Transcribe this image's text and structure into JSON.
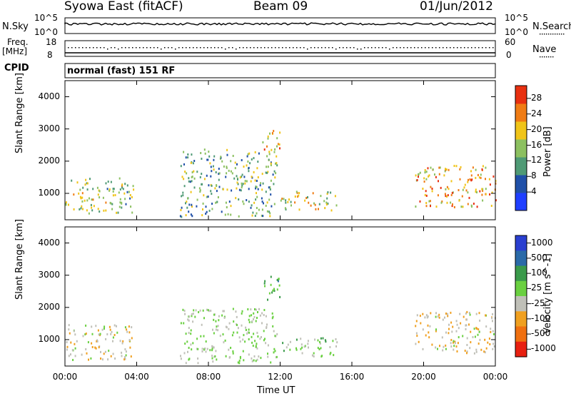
{
  "header": {
    "station": "Syowa East (fitACF)",
    "beam": "Beam 09",
    "date": "01/Jun/2012"
  },
  "strip_labels": {
    "nsky": "N.Sky",
    "nsky_hi": "10^5",
    "nsky_lo": "10^0",
    "nsearch": "N.Search",
    "nsearch_hi": "10^5",
    "nsearch_lo": "10^0",
    "freq_top": "Freq.",
    "freq_unit": "[MHz]",
    "freq_hi": "18",
    "freq_lo": "8",
    "nave": "Nave",
    "nave_hi": "60",
    "nave_lo": "0",
    "cpid": "CPID",
    "mode": "normal (fast) 151 RF"
  },
  "chart_data": [
    {
      "type": "heatmap",
      "title": "",
      "xlabel": "Time UT",
      "ylabel": "Slant Range [km]",
      "xlim": [
        0,
        24
      ],
      "ylim": [
        180,
        4500
      ],
      "x_ticks": [
        "00:00",
        "04:00",
        "08:00",
        "12:00",
        "16:00",
        "20:00",
        "00:00"
      ],
      "y_ticks": [
        "1000",
        "2000",
        "3000",
        "4000"
      ],
      "colorbar": {
        "label": "Power [dB]",
        "ticks": [
          "4",
          "8",
          "12",
          "16",
          "20",
          "24",
          "28"
        ],
        "colors": [
          "#1f3fff",
          "#2050a8",
          "#4f9a75",
          "#8cc060",
          "#f0c418",
          "#f07c14",
          "#e83010"
        ]
      },
      "echo_regions": [
        {
          "t_start": 0.0,
          "t_end": 3.8,
          "range_min": 400,
          "range_max": 1500,
          "typical_power_db": 16
        },
        {
          "t_start": 6.4,
          "t_end": 11.8,
          "range_min": 300,
          "range_max": 2400,
          "typical_power_db": 14
        },
        {
          "t_start": 11.0,
          "t_end": 12.0,
          "range_min": 2200,
          "range_max": 3000,
          "typical_power_db": 22
        },
        {
          "t_start": 12.0,
          "t_end": 15.2,
          "range_min": 500,
          "range_max": 1100,
          "typical_power_db": 18
        },
        {
          "t_start": 19.5,
          "t_end": 24.0,
          "range_min": 600,
          "range_max": 1900,
          "typical_power_db": 22
        }
      ]
    },
    {
      "type": "heatmap",
      "title": "",
      "xlabel": "Time UT",
      "ylabel": "Slant Range [km]",
      "xlim": [
        0,
        24
      ],
      "ylim": [
        180,
        4500
      ],
      "x_ticks": [
        "00:00",
        "04:00",
        "08:00",
        "12:00",
        "16:00",
        "20:00",
        "00:00"
      ],
      "y_ticks": [
        "1000",
        "2000",
        "3000",
        "4000"
      ],
      "colorbar": {
        "label": "Velocity [m s^-1]",
        "ticks": [
          "1000",
          "500",
          "100",
          "25",
          "-25",
          "-100",
          "-500",
          "-1000"
        ],
        "colors": [
          "#2a3fd0",
          "#2a6aa8",
          "#3a9a4a",
          "#6ad040",
          "#c0c0b8",
          "#f0a020",
          "#f07010",
          "#e82010"
        ]
      },
      "echo_regions": [
        {
          "t_start": 0.0,
          "t_end": 3.8,
          "range_min": 400,
          "range_max": 1500,
          "typical_velocity": -150
        },
        {
          "t_start": 6.4,
          "t_end": 11.8,
          "range_min": 300,
          "range_max": 2000,
          "typical_velocity": 0
        },
        {
          "t_start": 11.0,
          "t_end": 12.0,
          "range_min": 2200,
          "range_max": 3000,
          "typical_velocity": 300
        },
        {
          "t_start": 12.0,
          "t_end": 15.2,
          "range_min": 500,
          "range_max": 1100,
          "typical_velocity": 60
        },
        {
          "t_start": 19.5,
          "t_end": 24.0,
          "range_min": 600,
          "range_max": 1900,
          "typical_velocity": -200
        }
      ]
    }
  ]
}
